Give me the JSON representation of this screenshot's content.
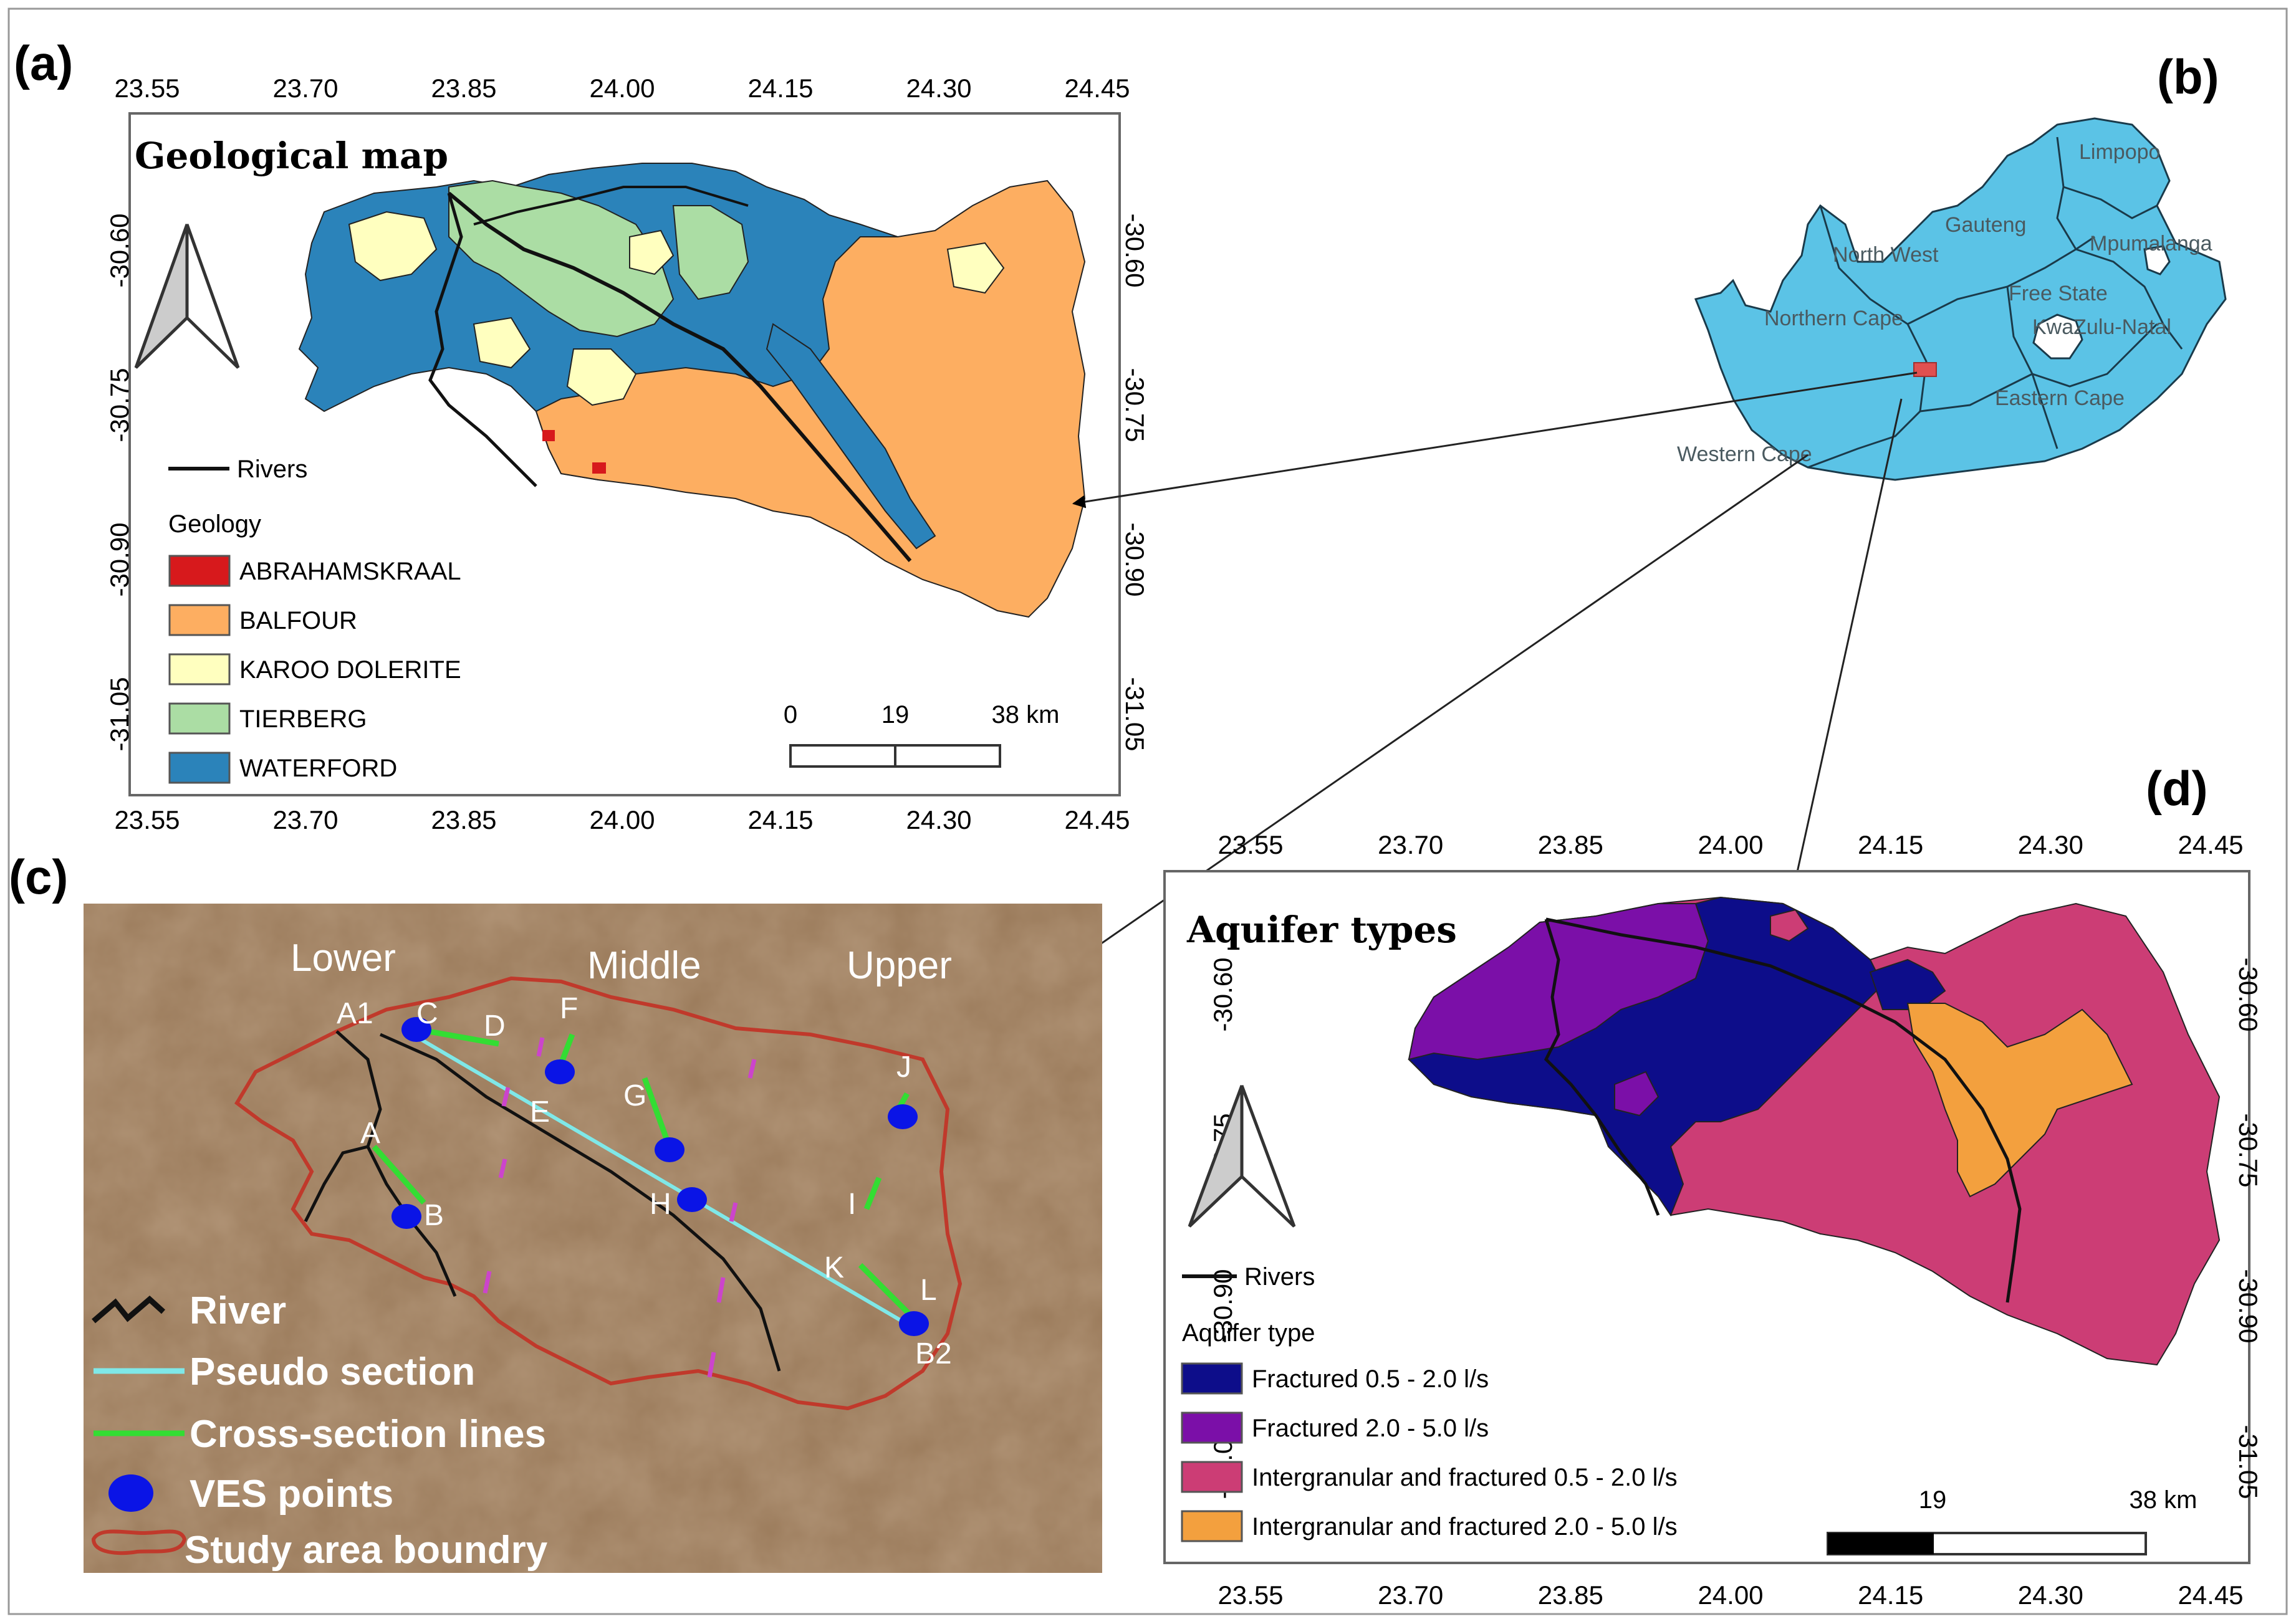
{
  "panels": {
    "a": {
      "label": "(a)",
      "title": "Geological map",
      "x_ticks": [
        "23.55",
        "23.70",
        "23.85",
        "24.00",
        "24.15",
        "24.30",
        "24.45"
      ],
      "y_ticks": [
        "-30.60",
        "-30.75",
        "-30.90",
        "-31.05"
      ],
      "legend_rivers": "Rivers",
      "legend_heading": "Geology",
      "legend": [
        {
          "label": "ABRAHAMSKRAAL",
          "color": "#d7191c"
        },
        {
          "label": "BALFOUR",
          "color": "#fdae61"
        },
        {
          "label": "KAROO DOLERITE",
          "color": "#ffffbf"
        },
        {
          "label": "TIERBERG",
          "color": "#abdda4"
        },
        {
          "label": "WATERFORD",
          "color": "#2b83ba"
        }
      ],
      "scale_labels": [
        "0",
        "19",
        "38 km"
      ]
    },
    "b": {
      "label": "(b)",
      "provinces": [
        "Limpopo",
        "Gauteng",
        "North West",
        "Mpumalanga",
        "Free State",
        "Northern Cape",
        "KwaZulu-Natal",
        "Eastern Cape",
        "Western Cape"
      ],
      "fill_color": "#5bc3e6",
      "highlight_color": "#e05050"
    },
    "c": {
      "label": "(c)",
      "zones": [
        "Lower",
        "Middle",
        "Upper"
      ],
      "points": [
        "A1",
        "C",
        "D",
        "F",
        "E",
        "G",
        "H",
        "A",
        "B",
        "J",
        "I",
        "K",
        "L",
        "B2"
      ],
      "legend": [
        {
          "label": "River",
          "symbol": "river"
        },
        {
          "label": "Pseudo section",
          "symbol": "pseudo"
        },
        {
          "label": "Cross-section lines",
          "symbol": "cross"
        },
        {
          "label": "VES points",
          "symbol": "ves"
        },
        {
          "label": "Study area boundry",
          "symbol": "boundary"
        }
      ],
      "colors": {
        "pseudo": "#7fe8e8",
        "cross": "#33dd33",
        "ves": "#0a14e6",
        "boundary": "#c0392b",
        "river": "#111111"
      }
    },
    "d": {
      "label": "(d)",
      "title": "Aquifer types",
      "x_ticks": [
        "23.55",
        "23.70",
        "23.85",
        "24.00",
        "24.15",
        "24.30",
        "24.45"
      ],
      "y_ticks": [
        "-30.60",
        "-30.75",
        "-30.90",
        "-31.05"
      ],
      "legend_rivers": "Rivers",
      "legend_heading": "Aquifer type",
      "legend": [
        {
          "label": "Fractured 0.5 - 2.0 l/s",
          "color": "#0d0d8a"
        },
        {
          "label": "Fractured 2.0 - 5.0 l/s",
          "color": "#7b0fa8"
        },
        {
          "label": "Intergranular and fractured 0.5 - 2.0 l/s",
          "color": "#cc3d75"
        },
        {
          "label": "Intergranular and fractured 2.0 - 5.0 l/s",
          "color": "#f3a03e"
        }
      ],
      "scale_labels": [
        "19",
        "38 km"
      ]
    }
  }
}
